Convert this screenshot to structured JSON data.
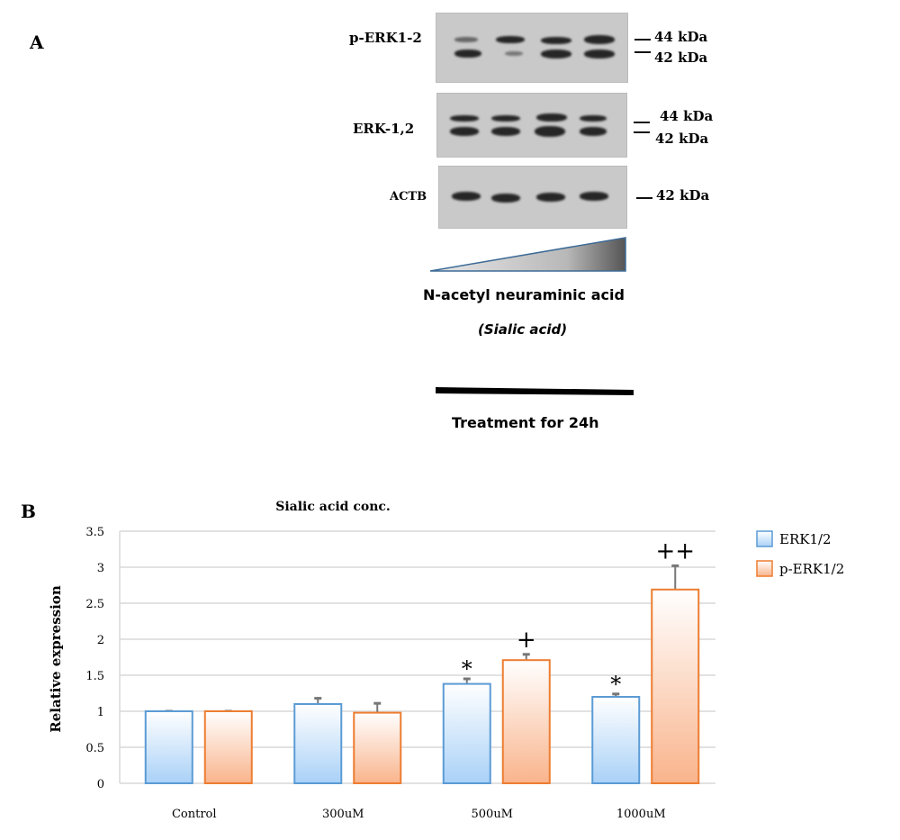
{
  "panel_a": {
    "label": "A",
    "blots": [
      {
        "name": "p-ERK1-2",
        "markers": [
          "44 kDa",
          "42 kDa"
        ]
      },
      {
        "name": "ERK-1,2",
        "markers": [
          "44 kDa",
          "42 kDa"
        ]
      },
      {
        "name": "ACTB",
        "markers": [
          "42 kDa"
        ]
      }
    ],
    "gradient_label": "N-acetyl neuraminic acid",
    "gradient_sublabel": "(Sialic acid)",
    "treatment_label": "Treatment for 24h"
  },
  "panel_b": {
    "label": "B"
  },
  "chart_data": {
    "type": "bar",
    "title": "Sialic acid conc.",
    "ylabel": "Relative expression",
    "xlabel": "",
    "ylim": [
      0,
      3.5
    ],
    "yticks": [
      "0",
      "0.5",
      "1",
      "1.5",
      "2",
      "2.5",
      "3",
      "3.5"
    ],
    "grid": true,
    "legend_position": "right",
    "categories": [
      "Control",
      "300uM",
      "500uM",
      "1000uM"
    ],
    "series": [
      {
        "name": "ERK1/2",
        "values": [
          1.0,
          1.1,
          1.38,
          1.2
        ],
        "errors": [
          0.0,
          0.08,
          0.07,
          0.04
        ],
        "annotations": [
          "",
          "",
          "*",
          "*"
        ],
        "color": "#5b9bd5",
        "fill": "#a9d1f7"
      },
      {
        "name": "p-ERK1/2",
        "values": [
          1.0,
          0.98,
          1.71,
          2.69
        ],
        "errors": [
          0.0,
          0.13,
          0.08,
          0.33
        ],
        "annotations": [
          "",
          "",
          "+",
          "++"
        ],
        "color": "#ed7d31",
        "fill": "#f9b48c"
      }
    ]
  }
}
